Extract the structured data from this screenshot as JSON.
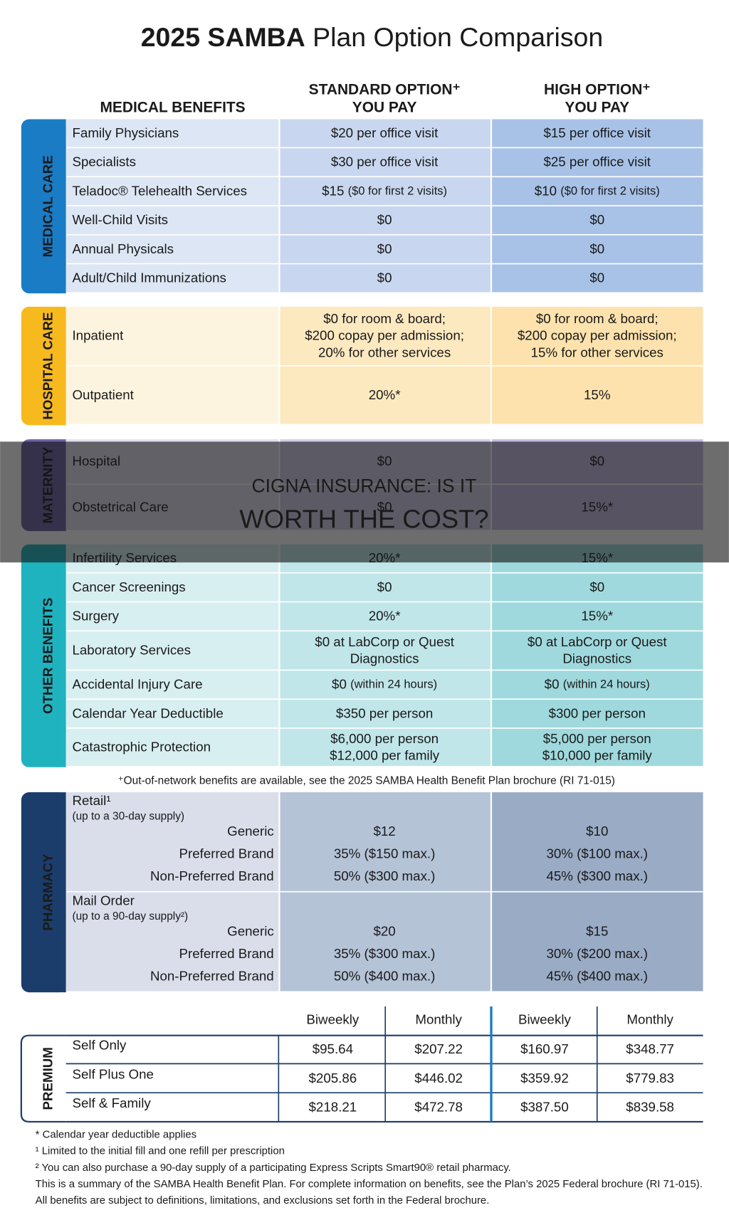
{
  "header": {
    "title_bold": "2025 SAMBA",
    "title_rest": "Plan Option Comparison",
    "benefits": "MEDICAL BENEFITS",
    "standard": "STANDARD OPTION⁺",
    "high": "HIGH OPTION⁺",
    "you_pay": "YOU PAY"
  },
  "sections": [
    {
      "label": "MEDICAL CARE",
      "color": "#1a7cc4",
      "cells": [
        "#dde6f4",
        "#c8d7ef",
        "#a8c2e7"
      ],
      "rows": [
        [
          "Family Physicians",
          "$20 per office visit",
          "$15 per office visit"
        ],
        [
          "Specialists",
          "$30 per office visit",
          "$25 per office visit"
        ],
        [
          "Teladoc® Telehealth Services",
          {
            "main": "$15",
            "note": "($0 for first 2 visits)"
          },
          {
            "main": "$10",
            "note": "($0 for first 2 visits)"
          }
        ],
        [
          "Well-Child Visits",
          "$0",
          "$0"
        ],
        [
          "Annual Physicals",
          "$0",
          "$0"
        ],
        [
          "Adult/Child Immunizations",
          "$0",
          "$0"
        ]
      ]
    },
    {
      "label": "HOSPITAL CARE",
      "color": "#f6b91e",
      "cells": [
        "#fdf4df",
        "#fde9c0",
        "#fde2ad"
      ],
      "rows": [
        [
          "Inpatient",
          [
            "$0 for room & board;",
            "$200 copay per admission;",
            "20% for other services"
          ],
          [
            "$0 for room & board;",
            "$200 copay per admission;",
            "15% for other services"
          ]
        ],
        [
          "Outpatient",
          "20%*",
          "15%"
        ]
      ]
    },
    {
      "label": "MATERNITY",
      "color": "#6f63a6",
      "cells": [
        "#e3e0f0",
        "#d3cde9",
        "#c4bce2"
      ],
      "rows": [
        [
          "Hospital",
          "$0",
          "$0"
        ],
        [
          "Obstetrical Care",
          "$0",
          "15%*"
        ]
      ]
    },
    {
      "label": "OTHER BENEFITS",
      "color": "#1fb3bf",
      "cells": [
        "#d8eff1",
        "#c0e6e9",
        "#9fd9dd"
      ],
      "rows": [
        [
          "Infertility Services",
          "20%*",
          "15%*"
        ],
        [
          "Cancer Screenings",
          "$0",
          "$0"
        ],
        [
          "Surgery",
          "20%*",
          "15%*"
        ],
        [
          "Laboratory Services",
          [
            "$0 at LabCorp or Quest",
            "Diagnostics"
          ],
          [
            "$0 at LabCorp or Quest",
            "Diagnostics"
          ]
        ],
        [
          "Accidental Injury Care",
          {
            "main": "$0",
            "note": "(within 24 hours)"
          },
          {
            "main": "$0",
            "note": "(within 24 hours)"
          }
        ],
        [
          "Calendar Year Deductible",
          "$350 per person",
          "$300 per person"
        ],
        [
          "Catastrophic Protection",
          [
            "$6,000 per person",
            "$12,000 per family"
          ],
          [
            "$5,000 per person",
            "$10,000 per family"
          ]
        ]
      ]
    }
  ],
  "network_note": "⁺Out-of-network benefits are available, see the 2025 SAMBA Health Benefit Plan brochure (RI 71-015)",
  "pharmacy": {
    "label": "PHARMACY",
    "blocks": [
      {
        "title": "Retail¹",
        "note": "(up to a 30-day supply)",
        "rows": [
          [
            "Generic",
            "$12",
            "$10"
          ],
          [
            "Preferred Brand",
            "35% ($150 max.)",
            "30% ($100 max.)"
          ],
          [
            "Non-Preferred Brand",
            "50% ($300 max.)",
            "45% ($300 max.)"
          ]
        ]
      },
      {
        "title": "Mail Order",
        "note": "(up to a 90-day supply²)",
        "rows": [
          [
            "Generic",
            "$20",
            "$15"
          ],
          [
            "Preferred Brand",
            "35% ($300 max.)",
            "30% ($200 max.)"
          ],
          [
            "Non-Preferred Brand",
            "50% ($400 max.)",
            "45% ($400 max.)"
          ]
        ]
      }
    ]
  },
  "premium": {
    "label": "PREMIUM",
    "columns": [
      "Biweekly",
      "Monthly",
      "Biweekly",
      "Monthly"
    ],
    "rows": [
      [
        "Self Only",
        "$95.64",
        "$207.22",
        "$160.97",
        "$348.77"
      ],
      [
        "Self Plus One",
        "$205.86",
        "$446.02",
        "$359.92",
        "$779.83"
      ],
      [
        "Self & Family",
        "$218.21",
        "$472.78",
        "$387.50",
        "$839.58"
      ]
    ]
  },
  "footnotes": [
    "* Calendar year deductible applies",
    "¹ Limited to the initial fill and one refill per prescription",
    "² You can also purchase a 90-day supply of a participating Express Scripts Smart90® retail pharmacy.",
    "This is a summary of the SAMBA Health Benefit Plan.  For complete information on benefits, see the Plan’s 2025 Federal brochure (RI 71-015).",
    "All benefits are subject to definitions, limitations, and exclusions set forth in the Federal brochure."
  ],
  "banner": {
    "line1": "CIGNA INSURANCE: IS IT",
    "line2": "WORTH THE COST?"
  }
}
